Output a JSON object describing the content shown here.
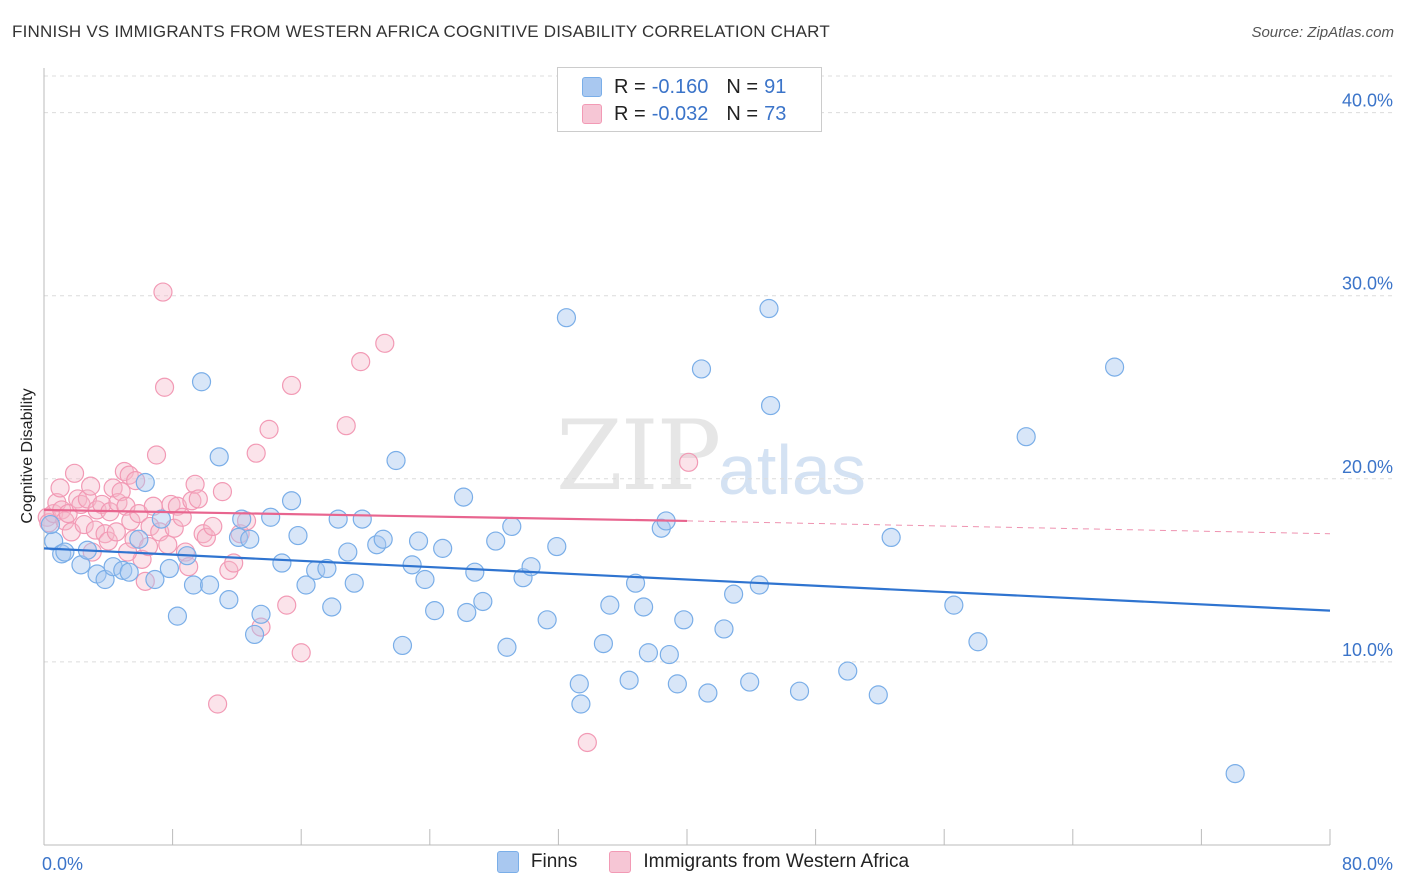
{
  "title": "FINNISH VS IMMIGRANTS FROM WESTERN AFRICA COGNITIVE DISABILITY CORRELATION CHART",
  "source": "Source: ZipAtlas.com",
  "watermark": {
    "zip": "ZIP",
    "atlas": "atlas"
  },
  "legend": {
    "rows": [
      {
        "r_label": "R =",
        "r_value": "-0.160",
        "n_label": "N =",
        "n_value": "91",
        "color": "#a9c8f0"
      },
      {
        "r_label": "R =",
        "r_value": "-0.032",
        "n_label": "N =",
        "n_value": "73",
        "color": "#f6b8cb"
      }
    ]
  },
  "bottom_legend": [
    {
      "label": "Finns",
      "color": "#a9c8f0"
    },
    {
      "label": "Immigrants from Western Africa",
      "color": "#f6b8cb"
    }
  ],
  "chart_data": {
    "type": "scatter",
    "title": "FINNISH VS IMMIGRANTS FROM WESTERN AFRICA COGNITIVE DISABILITY CORRELATION CHART",
    "xlabel": "",
    "ylabel": "Cognitive Disability",
    "xlim": [
      0,
      80
    ],
    "ylim": [
      0,
      42
    ],
    "x_tick_labels": [
      "0.0%",
      "80.0%"
    ],
    "y_ticks": [
      10,
      20,
      30,
      40
    ],
    "y_tick_labels": [
      "10.0%",
      "20.0%",
      "30.0%",
      "40.0%"
    ],
    "grid": true,
    "legend_position": "top-center",
    "series": [
      {
        "name": "Finns",
        "color": "#7aaee8",
        "points": [
          [
            0.6,
            16.6
          ],
          [
            1.1,
            15.9
          ],
          [
            1.3,
            16.0
          ],
          [
            2.3,
            15.3
          ],
          [
            2.7,
            16.1
          ],
          [
            3.3,
            14.8
          ],
          [
            3.8,
            14.5
          ],
          [
            4.3,
            15.2
          ],
          [
            4.9,
            15.0
          ],
          [
            5.3,
            14.9
          ],
          [
            5.9,
            16.7
          ],
          [
            6.3,
            19.8
          ],
          [
            6.9,
            14.5
          ],
          [
            7.3,
            17.8
          ],
          [
            7.8,
            15.1
          ],
          [
            8.3,
            12.5
          ],
          [
            8.9,
            15.8
          ],
          [
            9.3,
            14.2
          ],
          [
            9.8,
            25.3
          ],
          [
            10.3,
            14.2
          ],
          [
            10.9,
            21.2
          ],
          [
            11.5,
            13.4
          ],
          [
            12.1,
            16.8
          ],
          [
            12.3,
            17.8
          ],
          [
            12.8,
            16.7
          ],
          [
            13.1,
            11.5
          ],
          [
            13.5,
            12.6
          ],
          [
            14.1,
            17.9
          ],
          [
            14.8,
            15.4
          ],
          [
            15.4,
            18.8
          ],
          [
            15.8,
            16.9
          ],
          [
            16.3,
            14.2
          ],
          [
            16.9,
            15.0
          ],
          [
            17.6,
            15.1
          ],
          [
            17.9,
            13.0
          ],
          [
            18.3,
            17.8
          ],
          [
            18.9,
            16.0
          ],
          [
            19.3,
            14.3
          ],
          [
            19.8,
            17.8
          ],
          [
            20.7,
            16.4
          ],
          [
            21.1,
            16.7
          ],
          [
            21.9,
            21.0
          ],
          [
            22.3,
            10.9
          ],
          [
            22.9,
            15.3
          ],
          [
            23.3,
            16.6
          ],
          [
            23.7,
            14.5
          ],
          [
            24.3,
            12.8
          ],
          [
            24.8,
            16.2
          ],
          [
            26.1,
            19.0
          ],
          [
            26.3,
            12.7
          ],
          [
            26.8,
            14.9
          ],
          [
            27.3,
            13.3
          ],
          [
            28.1,
            16.6
          ],
          [
            28.8,
            10.8
          ],
          [
            29.1,
            17.4
          ],
          [
            29.8,
            14.6
          ],
          [
            30.3,
            15.2
          ],
          [
            31.3,
            12.3
          ],
          [
            31.9,
            16.3
          ],
          [
            32.5,
            28.8
          ],
          [
            33.3,
            8.8
          ],
          [
            33.4,
            7.7
          ],
          [
            34.8,
            11.0
          ],
          [
            35.2,
            13.1
          ],
          [
            36.4,
            9.0
          ],
          [
            36.8,
            14.3
          ],
          [
            37.3,
            13.0
          ],
          [
            37.6,
            10.5
          ],
          [
            38.4,
            17.3
          ],
          [
            38.7,
            17.7
          ],
          [
            38.9,
            10.4
          ],
          [
            39.4,
            8.8
          ],
          [
            39.8,
            12.3
          ],
          [
            40.9,
            26.0
          ],
          [
            41.3,
            8.3
          ],
          [
            42.3,
            11.8
          ],
          [
            42.9,
            13.7
          ],
          [
            43.9,
            8.9
          ],
          [
            45.2,
            24.0
          ],
          [
            45.1,
            29.3
          ],
          [
            44.5,
            14.2
          ],
          [
            47.0,
            8.4
          ],
          [
            50.0,
            9.5
          ],
          [
            51.9,
            8.2
          ],
          [
            52.7,
            16.8
          ],
          [
            56.6,
            13.1
          ],
          [
            58.1,
            11.1
          ],
          [
            61.1,
            22.3
          ],
          [
            66.6,
            26.1
          ],
          [
            74.1,
            3.9
          ],
          [
            0.4,
            17.5
          ]
        ]
      },
      {
        "name": "Immigrants from Western Africa",
        "color": "#f29ab5",
        "points": [
          [
            0.2,
            17.9
          ],
          [
            0.3,
            17.6
          ],
          [
            0.6,
            18.1
          ],
          [
            0.8,
            18.7
          ],
          [
            1.0,
            19.5
          ],
          [
            1.1,
            18.3
          ],
          [
            1.3,
            17.7
          ],
          [
            1.5,
            18.1
          ],
          [
            1.7,
            17.1
          ],
          [
            1.9,
            20.3
          ],
          [
            2.1,
            18.9
          ],
          [
            2.3,
            18.6
          ],
          [
            2.5,
            17.5
          ],
          [
            2.7,
            18.9
          ],
          [
            2.9,
            19.6
          ],
          [
            3.0,
            16.0
          ],
          [
            3.2,
            17.2
          ],
          [
            3.3,
            18.3
          ],
          [
            3.6,
            18.6
          ],
          [
            3.8,
            17.0
          ],
          [
            4.0,
            16.6
          ],
          [
            4.1,
            18.2
          ],
          [
            4.3,
            19.5
          ],
          [
            4.5,
            17.1
          ],
          [
            4.6,
            18.7
          ],
          [
            4.8,
            19.3
          ],
          [
            5.0,
            20.4
          ],
          [
            5.1,
            18.5
          ],
          [
            5.3,
            20.2
          ],
          [
            5.4,
            17.7
          ],
          [
            5.6,
            16.7
          ],
          [
            5.7,
            19.9
          ],
          [
            5.9,
            18.1
          ],
          [
            6.1,
            15.6
          ],
          [
            6.3,
            14.4
          ],
          [
            6.5,
            16.3
          ],
          [
            6.6,
            17.4
          ],
          [
            6.8,
            18.5
          ],
          [
            7.0,
            21.3
          ],
          [
            7.2,
            17.1
          ],
          [
            7.4,
            30.2
          ],
          [
            7.5,
            25.0
          ],
          [
            7.7,
            16.4
          ],
          [
            7.9,
            18.6
          ],
          [
            8.1,
            17.3
          ],
          [
            8.3,
            18.5
          ],
          [
            8.6,
            17.9
          ],
          [
            8.8,
            16.0
          ],
          [
            9.0,
            15.2
          ],
          [
            9.2,
            18.8
          ],
          [
            9.4,
            19.7
          ],
          [
            9.6,
            18.9
          ],
          [
            9.9,
            17.0
          ],
          [
            10.1,
            16.8
          ],
          [
            10.5,
            17.4
          ],
          [
            10.8,
            7.7
          ],
          [
            11.1,
            19.3
          ],
          [
            11.5,
            15.0
          ],
          [
            11.8,
            15.4
          ],
          [
            12.2,
            17.0
          ],
          [
            12.6,
            17.7
          ],
          [
            13.2,
            21.4
          ],
          [
            13.5,
            11.9
          ],
          [
            14.0,
            22.7
          ],
          [
            15.1,
            13.1
          ],
          [
            15.4,
            25.1
          ],
          [
            16.0,
            10.5
          ],
          [
            18.8,
            22.9
          ],
          [
            19.7,
            26.4
          ],
          [
            21.2,
            27.4
          ],
          [
            33.8,
            5.6
          ],
          [
            40.1,
            20.9
          ],
          [
            5.2,
            16.0
          ]
        ]
      }
    ],
    "trend_lines": [
      {
        "series": "Finns",
        "x": [
          0,
          80
        ],
        "y": [
          16.2,
          12.8
        ]
      },
      {
        "series": "Immigrants from Western Africa",
        "x": [
          0,
          40,
          80
        ],
        "y": [
          18.3,
          17.7,
          17.0
        ]
      }
    ]
  }
}
